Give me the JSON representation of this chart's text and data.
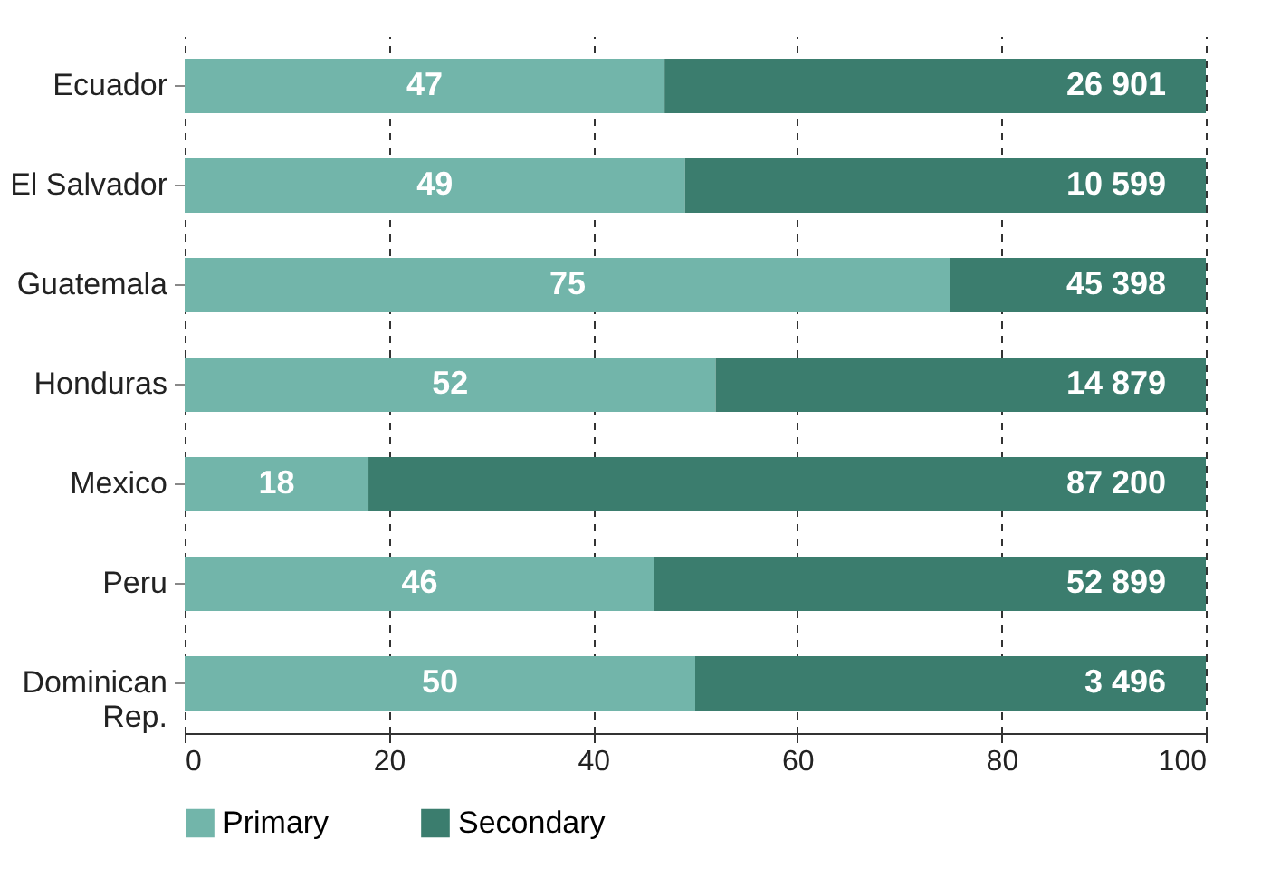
{
  "chart_data": {
    "type": "bar",
    "orientation": "horizontal",
    "stacked": true,
    "categories": [
      "Ecuador",
      "El Salvador",
      "Guatemala",
      "Honduras",
      "Mexico",
      "Peru",
      "Dominican Rep."
    ],
    "series": [
      {
        "name": "Primary",
        "color": "#72b5aa",
        "values": [
          47,
          49,
          75,
          52,
          18,
          46,
          50
        ],
        "value_labels": [
          "47",
          "49",
          "75",
          "52",
          "18",
          "46",
          "50"
        ]
      },
      {
        "name": "Secondary",
        "color": "#3b7d6e",
        "values": [
          53,
          51,
          25,
          48,
          82,
          54,
          50
        ]
      }
    ],
    "annotations": [
      "26 901",
      "10 599",
      "45 398",
      "14 879",
      "87 200",
      "52 899",
      "3 496"
    ],
    "xlim": [
      0,
      100
    ],
    "xticks": [
      0,
      20,
      40,
      60,
      80,
      100
    ],
    "grid": "x",
    "legend": "bottom"
  }
}
